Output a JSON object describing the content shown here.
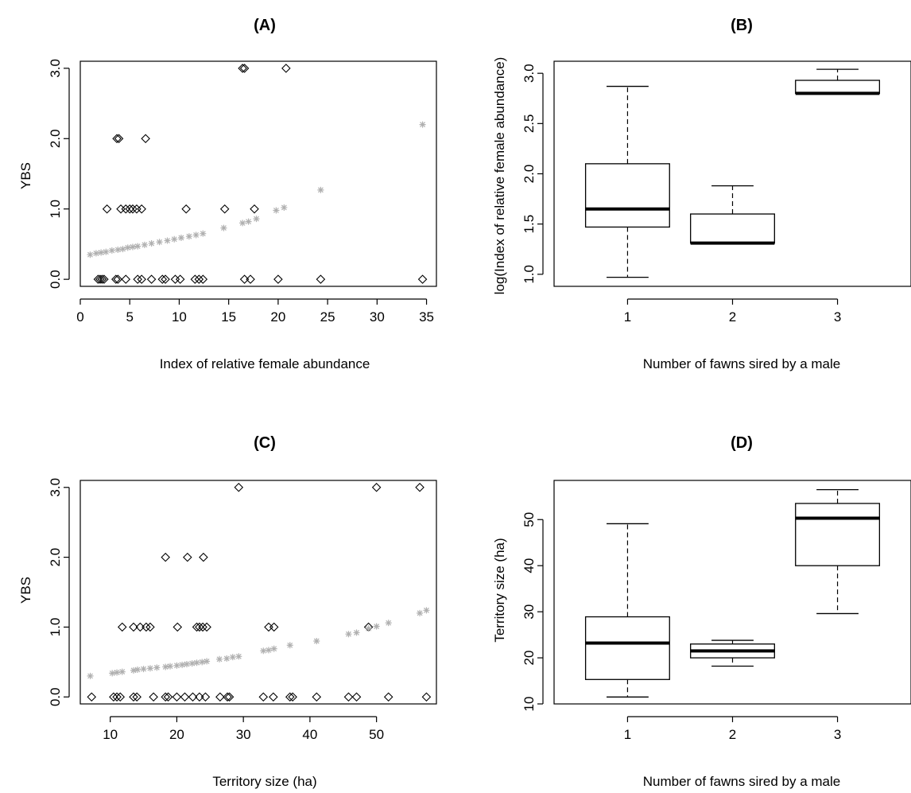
{
  "chart_data": [
    {
      "id": "A",
      "type": "scatter",
      "title": "(A)",
      "xlabel": "Index of relative female abundance",
      "ylabel": "YBS",
      "xlim": [
        0,
        36
      ],
      "ylim": [
        -0.1,
        3.1
      ],
      "xticks": [
        0,
        5,
        10,
        15,
        20,
        25,
        30,
        35
      ],
      "yticks": [
        0.0,
        1.0,
        2.0,
        3.0
      ],
      "ytick_labels": [
        "0.0",
        "1.0",
        "2.0",
        "3.0"
      ],
      "series": [
        {
          "marker": "open-diamond",
          "color": "#000000",
          "points": [
            [
              1.8,
              0
            ],
            [
              2.0,
              0
            ],
            [
              2.2,
              0
            ],
            [
              2.4,
              0
            ],
            [
              3.6,
              0
            ],
            [
              3.8,
              0
            ],
            [
              4.6,
              0
            ],
            [
              5.8,
              0
            ],
            [
              6.2,
              0
            ],
            [
              7.2,
              0
            ],
            [
              8.3,
              0
            ],
            [
              8.6,
              0
            ],
            [
              9.6,
              0
            ],
            [
              10.1,
              0
            ],
            [
              11.6,
              0
            ],
            [
              12.0,
              0
            ],
            [
              12.4,
              0
            ],
            [
              16.6,
              0
            ],
            [
              17.2,
              0
            ],
            [
              20.0,
              0
            ],
            [
              24.3,
              0
            ],
            [
              34.6,
              0
            ],
            [
              2.7,
              1
            ],
            [
              4.1,
              1
            ],
            [
              4.6,
              1
            ],
            [
              5.0,
              1
            ],
            [
              5.3,
              1
            ],
            [
              5.7,
              1
            ],
            [
              6.2,
              1
            ],
            [
              10.7,
              1
            ],
            [
              14.6,
              1
            ],
            [
              17.6,
              1
            ],
            [
              3.7,
              2
            ],
            [
              3.9,
              2
            ],
            [
              6.6,
              2
            ],
            [
              16.4,
              3
            ],
            [
              16.6,
              3
            ],
            [
              20.8,
              3
            ]
          ]
        },
        {
          "marker": "star",
          "color": "#b0b0b0",
          "points": [
            [
              1.0,
              0.35
            ],
            [
              1.6,
              0.37
            ],
            [
              2.1,
              0.38
            ],
            [
              2.6,
              0.39
            ],
            [
              3.2,
              0.41
            ],
            [
              3.8,
              0.42
            ],
            [
              4.3,
              0.43
            ],
            [
              4.8,
              0.45
            ],
            [
              5.3,
              0.46
            ],
            [
              5.8,
              0.47
            ],
            [
              6.5,
              0.49
            ],
            [
              7.2,
              0.51
            ],
            [
              8.0,
              0.53
            ],
            [
              8.8,
              0.55
            ],
            [
              9.5,
              0.57
            ],
            [
              10.2,
              0.59
            ],
            [
              11.0,
              0.61
            ],
            [
              11.7,
              0.63
            ],
            [
              12.4,
              0.65
            ],
            [
              14.5,
              0.73
            ],
            [
              16.4,
              0.8
            ],
            [
              17.0,
              0.82
            ],
            [
              17.8,
              0.86
            ],
            [
              19.8,
              0.98
            ],
            [
              20.6,
              1.02
            ],
            [
              24.3,
              1.27
            ],
            [
              34.6,
              2.2
            ]
          ]
        }
      ]
    },
    {
      "id": "B",
      "type": "box",
      "title": "(B)",
      "xlabel": "Number of fawns sired by a male",
      "ylabel": "log(Index of relative female abundance)",
      "categories": [
        "1",
        "2",
        "3"
      ],
      "ylim": [
        0.88,
        3.12
      ],
      "yticks": [
        1.0,
        1.5,
        2.0,
        2.5,
        3.0
      ],
      "ytick_labels": [
        "1.0",
        "1.5",
        "2.0",
        "2.5",
        "3.0"
      ],
      "boxes": [
        {
          "min": 0.97,
          "q1": 1.47,
          "median": 1.65,
          "q3": 2.1,
          "max": 2.87
        },
        {
          "min": 1.31,
          "q1": 1.31,
          "median": 1.31,
          "q3": 1.6,
          "max": 1.88
        },
        {
          "min": 2.8,
          "q1": 2.8,
          "median": 2.8,
          "q3": 2.93,
          "max": 3.04
        }
      ]
    },
    {
      "id": "C",
      "type": "scatter",
      "title": "(C)",
      "xlabel": "Territory size (ha)",
      "ylabel": "YBS",
      "xlim": [
        5.5,
        59
      ],
      "ylim": [
        -0.1,
        3.1
      ],
      "xticks": [
        10,
        20,
        30,
        40,
        50
      ],
      "yticks": [
        0.0,
        1.0,
        2.0,
        3.0
      ],
      "ytick_labels": [
        "0.0",
        "1.0",
        "2.0",
        "3.0"
      ],
      "series": [
        {
          "marker": "open-diamond",
          "color": "#000000",
          "points": [
            [
              7.2,
              0
            ],
            [
              10.5,
              0
            ],
            [
              11.0,
              0
            ],
            [
              11.5,
              0
            ],
            [
              13.5,
              0
            ],
            [
              14.0,
              0
            ],
            [
              16.5,
              0
            ],
            [
              18.3,
              0
            ],
            [
              18.7,
              0
            ],
            [
              20.0,
              0
            ],
            [
              21.2,
              0
            ],
            [
              22.4,
              0
            ],
            [
              23.4,
              0
            ],
            [
              24.3,
              0
            ],
            [
              26.5,
              0
            ],
            [
              27.6,
              0
            ],
            [
              27.9,
              0
            ],
            [
              33.0,
              0
            ],
            [
              34.5,
              0
            ],
            [
              37.0,
              0
            ],
            [
              37.4,
              0
            ],
            [
              41.0,
              0
            ],
            [
              45.8,
              0
            ],
            [
              47.0,
              0
            ],
            [
              51.8,
              0
            ],
            [
              57.5,
              0
            ],
            [
              11.8,
              1
            ],
            [
              13.5,
              1
            ],
            [
              14.5,
              1
            ],
            [
              15.4,
              1
            ],
            [
              16.0,
              1
            ],
            [
              20.1,
              1
            ],
            [
              23.0,
              1
            ],
            [
              23.4,
              1
            ],
            [
              23.9,
              1
            ],
            [
              24.5,
              1
            ],
            [
              33.8,
              1
            ],
            [
              34.6,
              1
            ],
            [
              48.8,
              1
            ],
            [
              18.3,
              2
            ],
            [
              21.6,
              2
            ],
            [
              24.0,
              2
            ],
            [
              29.3,
              3
            ],
            [
              50.0,
              3
            ],
            [
              56.5,
              3
            ]
          ]
        },
        {
          "marker": "star",
          "color": "#b0b0b0",
          "points": [
            [
              7.0,
              0.3
            ],
            [
              10.3,
              0.34
            ],
            [
              11.0,
              0.35
            ],
            [
              11.8,
              0.36
            ],
            [
              13.5,
              0.38
            ],
            [
              14.1,
              0.39
            ],
            [
              15.0,
              0.4
            ],
            [
              16.0,
              0.41
            ],
            [
              17.0,
              0.42
            ],
            [
              18.3,
              0.43
            ],
            [
              19.0,
              0.44
            ],
            [
              20.0,
              0.45
            ],
            [
              20.8,
              0.46
            ],
            [
              21.5,
              0.47
            ],
            [
              22.3,
              0.48
            ],
            [
              23.0,
              0.49
            ],
            [
              23.8,
              0.5
            ],
            [
              24.5,
              0.51
            ],
            [
              26.4,
              0.54
            ],
            [
              27.5,
              0.55
            ],
            [
              28.4,
              0.57
            ],
            [
              29.3,
              0.58
            ],
            [
              33.0,
              0.66
            ],
            [
              33.8,
              0.67
            ],
            [
              34.6,
              0.69
            ],
            [
              37.0,
              0.74
            ],
            [
              41.0,
              0.8
            ],
            [
              45.8,
              0.9
            ],
            [
              47.0,
              0.92
            ],
            [
              48.8,
              0.98
            ],
            [
              50.0,
              1.01
            ],
            [
              51.8,
              1.06
            ],
            [
              56.5,
              1.2
            ],
            [
              57.5,
              1.24
            ]
          ]
        }
      ]
    },
    {
      "id": "D",
      "type": "box",
      "title": "(D)",
      "xlabel": "Number of fawns sired by a male",
      "ylabel": "Territory size (ha)",
      "categories": [
        "1",
        "2",
        "3"
      ],
      "ylim": [
        10,
        58.5
      ],
      "yticks": [
        10,
        20,
        30,
        40,
        50
      ],
      "ytick_labels": [
        "10",
        "20",
        "30",
        "40",
        "50"
      ],
      "boxes": [
        {
          "min": 11.5,
          "q1": 15.3,
          "median": 23.2,
          "q3": 28.9,
          "max": 49.1
        },
        {
          "min": 18.2,
          "q1": 20.0,
          "median": 21.5,
          "q3": 23.0,
          "max": 23.8
        },
        {
          "min": 29.6,
          "q1": 40.0,
          "median": 50.3,
          "q3": 53.5,
          "max": 56.5
        }
      ]
    }
  ]
}
